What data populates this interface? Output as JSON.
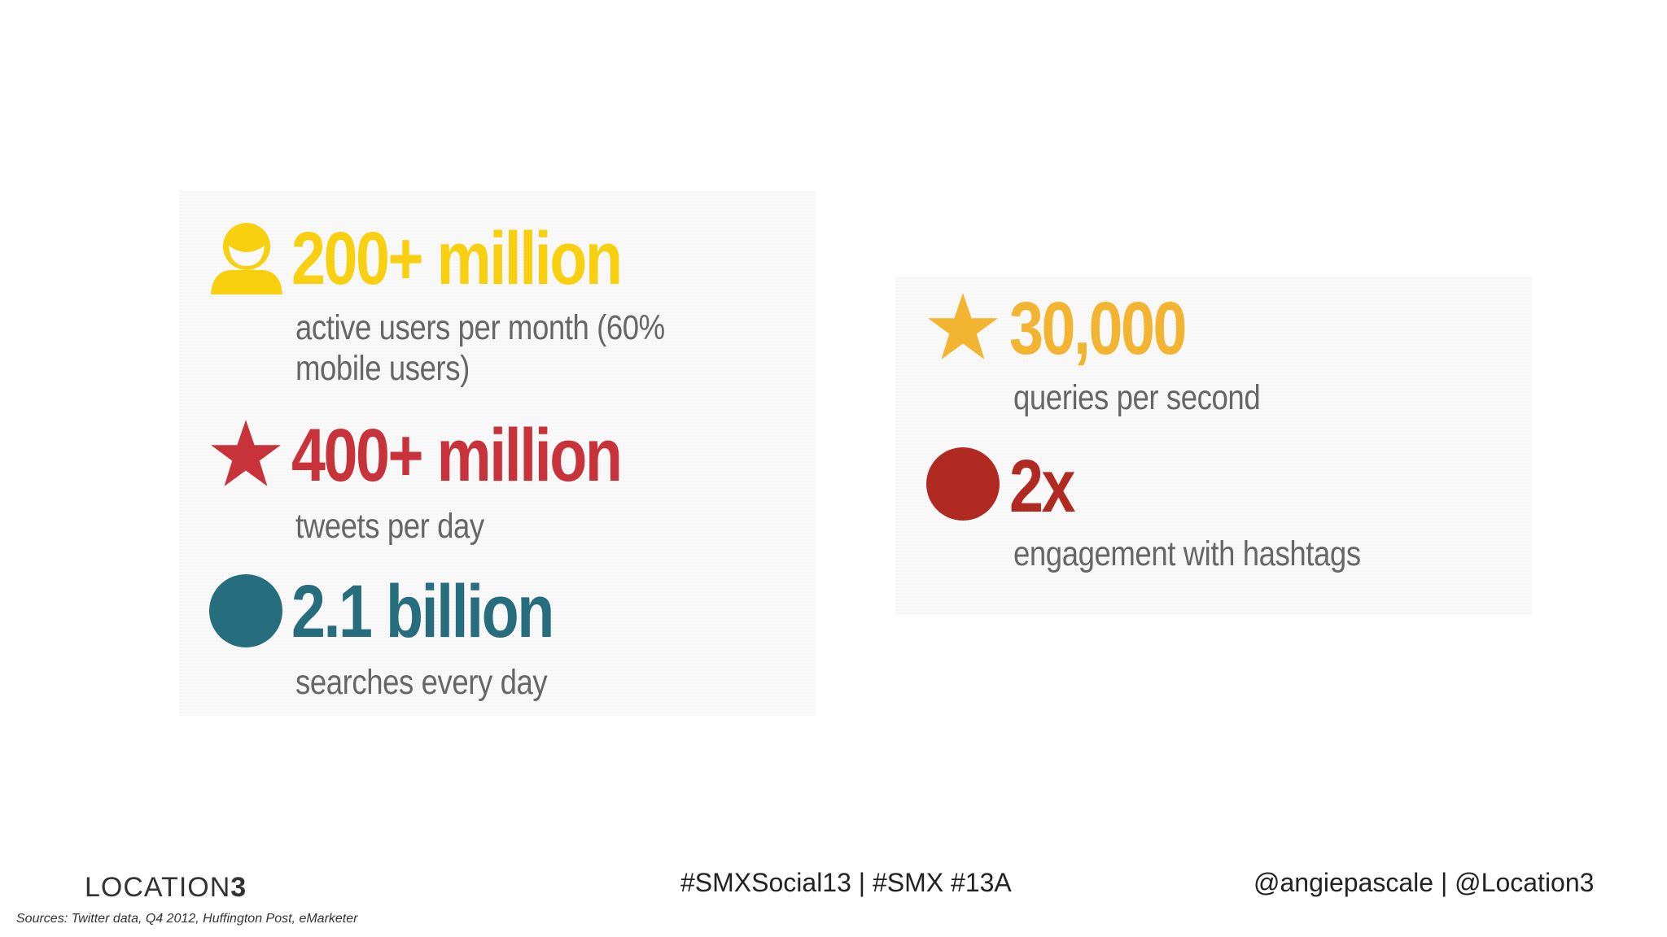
{
  "colors": {
    "yellow": "#f8d010",
    "red": "#c8323a",
    "teal": "#266e7e",
    "orange": "#f2b431",
    "dark_red": "#b12a22",
    "desc_gray": "#666666"
  },
  "stats_left": [
    {
      "icon": "user-icon",
      "value": "200+ million",
      "label": "active users per month (60% mobile users)"
    },
    {
      "icon": "star-icon",
      "value": "400+ million",
      "label": "tweets per day"
    },
    {
      "icon": "circle-icon",
      "value": "2.1 billion",
      "label": "searches every day"
    }
  ],
  "stats_right": [
    {
      "icon": "star-icon",
      "value": "30,000",
      "label": "queries per second"
    },
    {
      "icon": "circle-icon",
      "value": "2x",
      "label": "engagement with hashtags"
    }
  ],
  "footer": {
    "logo_text": "LOCATION",
    "logo_number": "3",
    "hashtags": "#SMXSocial13 | #SMX #13A",
    "handles": "@angiepascale | @Location3",
    "sources": "Sources: Twitter data, Q4 2012, Huffington Post, eMarketer"
  }
}
